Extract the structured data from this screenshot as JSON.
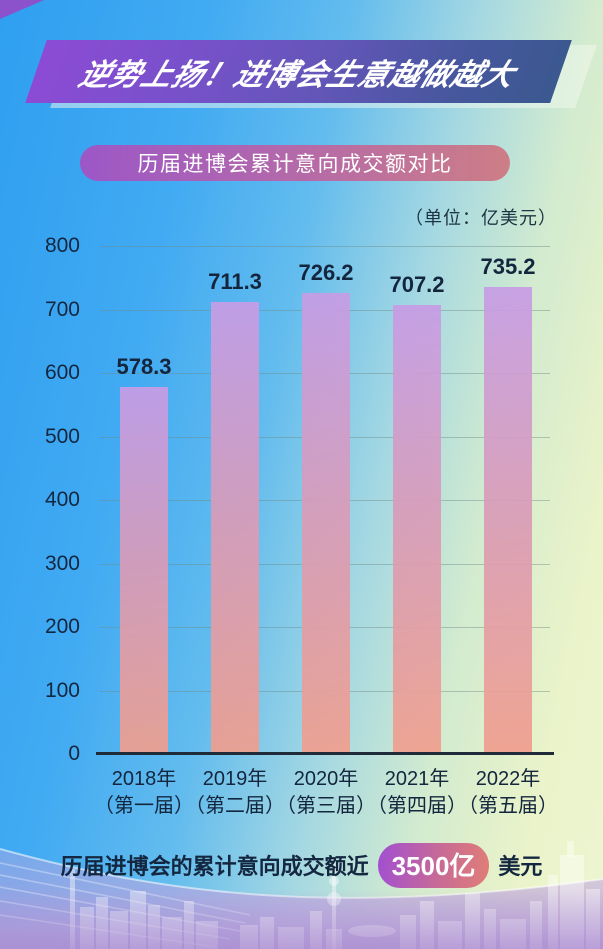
{
  "banner": {
    "title": "逆势上扬！进博会生意越做越大"
  },
  "section_pill": {
    "label": "历届进博会累计意向成交额对比"
  },
  "unit_label": "（单位：亿美元）",
  "chart_data": {
    "type": "bar",
    "title": "历届进博会累计意向成交额对比",
    "unit": "亿美元",
    "categories": [
      "2018年（第一届）",
      "2019年（第二届）",
      "2020年（第三届）",
      "2021年（第四届）",
      "2022年（第五届）"
    ],
    "category_lines": [
      [
        "2018年",
        "（第一届）"
      ],
      [
        "2019年",
        "（第二届）"
      ],
      [
        "2020年",
        "（第三届）"
      ],
      [
        "2021年",
        "（第四届）"
      ],
      [
        "2022年",
        "（第五届）"
      ]
    ],
    "values": [
      578.3,
      711.3,
      726.2,
      707.2,
      735.2
    ],
    "ylim": [
      0,
      800
    ],
    "yticks": [
      0,
      100,
      200,
      300,
      400,
      500,
      600,
      700,
      800
    ],
    "grid": true,
    "legend": false,
    "xlabel": "",
    "ylabel": ""
  },
  "footer": {
    "prefix": "历届进博会的累计意向成交额近",
    "highlight": "3500亿",
    "suffix": "美元"
  },
  "colors": {
    "background_blue": "#35a3f1",
    "background_green": "#eaf3c9",
    "background_lavender": "#c2abdf",
    "banner_gradient_start": "#8c4bd4",
    "banner_gradient_end": "#3b5890",
    "pill_gradient_start": "#9c57c7",
    "pill_gradient_end": "#cd7e86",
    "highlight_pill_start": "#a14fd2",
    "highlight_pill_end": "#e07e76",
    "bar_top": "#c79ce5",
    "bar_bottom": "#f09e8d",
    "text_dark": "#142740"
  }
}
